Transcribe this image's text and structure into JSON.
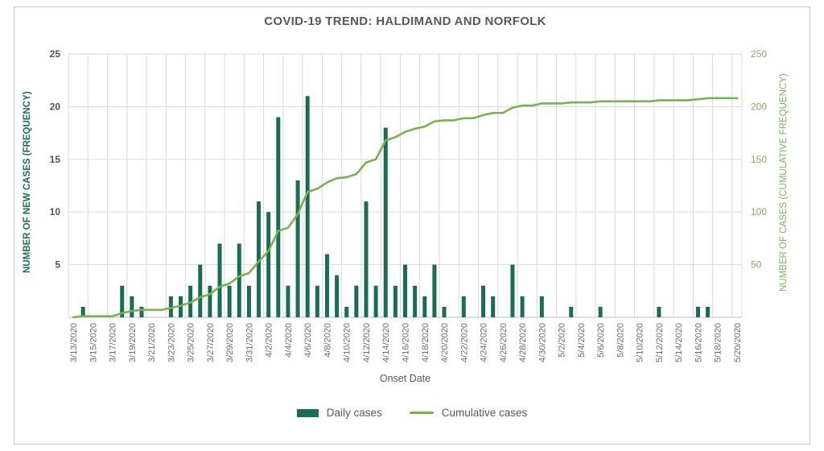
{
  "chart": {
    "title": "COVID-19 TREND: HALDIMAND AND NORFOLK",
    "x_axis": {
      "title": "Onset Date"
    },
    "left_axis": {
      "title": "NUMBER OF NEW CASES (FREQUENCY)",
      "ticks": [
        5,
        10,
        15,
        20,
        25
      ],
      "range": [
        0,
        25
      ]
    },
    "right_axis": {
      "title": "NUMBER OF CASES (CUMULATIVE FREQUENCY)",
      "ticks": [
        50,
        100,
        150,
        200,
        250
      ],
      "range": [
        0,
        250
      ]
    },
    "legend": {
      "daily": "Daily cases",
      "cumulative": "Cumulative cases"
    },
    "colors": {
      "bar": "#186e54",
      "line": "#77b34c",
      "grid": "#d9d9d9",
      "axis_line": "#bfbfbf",
      "left_tick_text": "#50593f",
      "right_tick_text": "#7cb45c",
      "x_tick_text": "#6b6b6b",
      "title_text": "#595959"
    }
  },
  "chart_data": {
    "type": "combo",
    "title": "COVID-19 TREND: HALDIMAND AND NORFOLK",
    "xlabel": "Onset Date",
    "ylabel_left": "NUMBER OF NEW CASES (FREQUENCY)",
    "ylabel_right": "NUMBER OF CASES (CUMULATIVE FREQUENCY)",
    "left_ylim": [
      0,
      25
    ],
    "right_ylim": [
      0,
      250
    ],
    "grid": true,
    "legend_position": "bottom",
    "x_tick_label_every": 2,
    "categories": [
      "3/13/2020",
      "3/14/2020",
      "3/15/2020",
      "3/16/2020",
      "3/17/2020",
      "3/18/2020",
      "3/19/2020",
      "3/20/2020",
      "3/21/2020",
      "3/22/2020",
      "3/23/2020",
      "3/24/2020",
      "3/25/2020",
      "3/26/2020",
      "3/27/2020",
      "3/28/2020",
      "3/29/2020",
      "3/30/2020",
      "3/31/2020",
      "4/1/2020",
      "4/2/2020",
      "4/3/2020",
      "4/4/2020",
      "4/5/2020",
      "4/6/2020",
      "4/7/2020",
      "4/8/2020",
      "4/9/2020",
      "4/10/2020",
      "4/11/2020",
      "4/12/2020",
      "4/13/2020",
      "4/14/2020",
      "4/15/2020",
      "4/16/2020",
      "4/17/2020",
      "4/18/2020",
      "4/19/2020",
      "4/20/2020",
      "4/21/2020",
      "4/22/2020",
      "4/23/2020",
      "4/24/2020",
      "4/25/2020",
      "4/26/2020",
      "4/27/2020",
      "4/28/2020",
      "4/29/2020",
      "4/30/2020",
      "5/1/2020",
      "5/2/2020",
      "5/3/2020",
      "5/4/2020",
      "5/5/2020",
      "5/6/2020",
      "5/7/2020",
      "5/8/2020",
      "5/9/2020",
      "5/10/2020",
      "5/11/2020",
      "5/12/2020",
      "5/13/2020",
      "5/14/2020",
      "5/15/2020",
      "5/16/2020",
      "5/17/2020",
      "5/18/2020",
      "5/19/2020",
      "5/20/2020"
    ],
    "series": [
      {
        "name": "Daily cases",
        "type": "bar",
        "axis": "left",
        "values": [
          0,
          1,
          0,
          0,
          0,
          3,
          2,
          1,
          0,
          0,
          2,
          2,
          3,
          5,
          3,
          7,
          3,
          7,
          3,
          11,
          10,
          19,
          3,
          13,
          21,
          3,
          6,
          4,
          1,
          3,
          11,
          3,
          18,
          3,
          5,
          3,
          2,
          5,
          1,
          0,
          2,
          0,
          3,
          2,
          0,
          5,
          2,
          0,
          2,
          0,
          0,
          1,
          0,
          0,
          1,
          0,
          0,
          0,
          0,
          0,
          1,
          0,
          0,
          0,
          1,
          1,
          0,
          0,
          0
        ]
      },
      {
        "name": "Cumulative cases",
        "type": "line",
        "axis": "right",
        "values": [
          0,
          1,
          1,
          1,
          1,
          4,
          6,
          7,
          7,
          7,
          9,
          11,
          14,
          19,
          22,
          29,
          32,
          39,
          42,
          53,
          63,
          82,
          85,
          98,
          119,
          122,
          128,
          132,
          133,
          136,
          147,
          150,
          168,
          171,
          176,
          179,
          181,
          186,
          187,
          187,
          189,
          189,
          192,
          194,
          194,
          199,
          201,
          201,
          203,
          203,
          203,
          204,
          204,
          204,
          205,
          205,
          205,
          205,
          205,
          205,
          206,
          206,
          206,
          206,
          207,
          208,
          208,
          208,
          208
        ]
      }
    ]
  }
}
